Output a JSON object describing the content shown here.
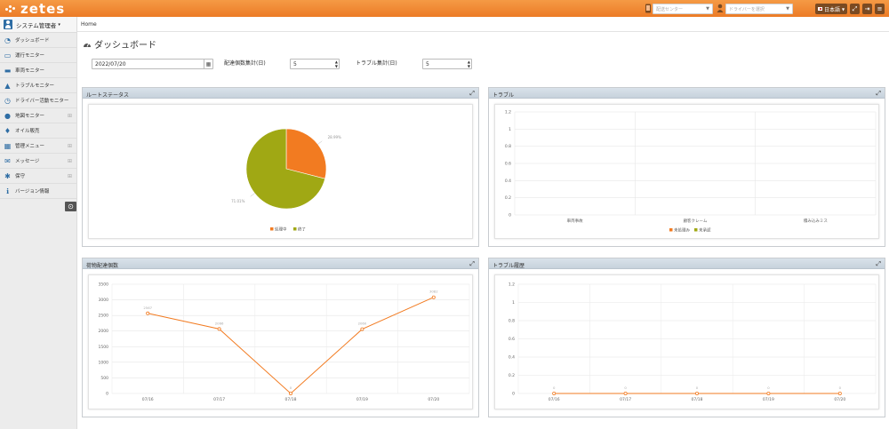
{
  "app": {
    "logo_text": "zetes",
    "topbar": {
      "select1_placeholder": "配送センター",
      "select2_placeholder": "ドライバーを選択",
      "language": "日本語",
      "icons": [
        "mobile-icon",
        "user-icon",
        "fullscreen-icon",
        "logout-icon",
        "menu-icon"
      ]
    }
  },
  "sidebar": {
    "user": "システム管理者",
    "items": [
      {
        "label": "ダッシュボード",
        "icon": "dashboard-icon",
        "expand": false
      },
      {
        "label": "運行モニター",
        "icon": "monitor-icon",
        "expand": false
      },
      {
        "label": "車両モニター",
        "icon": "truck-icon",
        "expand": false
      },
      {
        "label": "トラブルモニター",
        "icon": "warning-icon",
        "expand": false
      },
      {
        "label": "ドライバー活動モニター",
        "icon": "clock-icon",
        "expand": false
      },
      {
        "label": "地図モニター",
        "icon": "map-pin-icon",
        "expand": true
      },
      {
        "label": "オイル販売",
        "icon": "drop-icon",
        "expand": false
      },
      {
        "label": "管理メニュー",
        "icon": "table-icon",
        "expand": true
      },
      {
        "label": "メッセージ",
        "icon": "mail-icon",
        "expand": true
      },
      {
        "label": "保守",
        "icon": "gear-icon",
        "expand": true
      },
      {
        "label": "バージョン情報",
        "icon": "info-icon",
        "expand": false
      }
    ]
  },
  "breadcrumb": "Home",
  "page_title": "ダッシュボード",
  "filters": {
    "date_value": "2022/07/20",
    "delivery_label": "配達個数集計(日)",
    "delivery_value": "5",
    "trouble_label": "トラブル集計(日)",
    "trouble_value": "5"
  },
  "panels": {
    "route_status": "ルートステータス",
    "trouble": "トラブル",
    "delivery_count": "荷物配達個数",
    "trouble_history": "トラブル履歴"
  },
  "chart_data": [
    {
      "type": "pie",
      "panel": "ルートステータス",
      "slices": [
        {
          "name": "処理中",
          "value": 28.99,
          "label": "28.99%",
          "color": "#f27b21"
        },
        {
          "name": "終了",
          "value": 71.01,
          "label": "71.01%",
          "color": "#a0a814"
        }
      ],
      "legend": "bottom"
    },
    {
      "type": "bar",
      "panel": "トラブル",
      "categories": [
        "車両事故",
        "顧客クレーム",
        "積み込みミス"
      ],
      "series": [
        {
          "name": "未処理み",
          "values": [
            0,
            0,
            0
          ],
          "color": "#f27b21"
        },
        {
          "name": "未承認",
          "values": [
            0,
            0,
            0
          ],
          "color": "#a0a814"
        }
      ],
      "yticks": [
        "0",
        "0.2",
        "0.4",
        "0.6",
        "0.8",
        "1",
        "1.2"
      ],
      "ylim": [
        0,
        1.2
      ],
      "legend": "bottom"
    },
    {
      "type": "line",
      "panel": "荷物配達個数",
      "x": [
        "07/16",
        "07/17",
        "07/18",
        "07/19",
        "07/20"
      ],
      "values": [
        2567,
        2066,
        0,
        2060,
        3082
      ],
      "labels": [
        "2567",
        "2066",
        "0",
        "2060",
        "3082"
      ],
      "yticks": [
        "0",
        "500",
        "1000",
        "1500",
        "2000",
        "2500",
        "3000",
        "3500"
      ],
      "ylim": [
        0,
        3500
      ],
      "color": "#f27b21"
    },
    {
      "type": "line",
      "panel": "トラブル履歴",
      "x": [
        "07/16",
        "07/17",
        "07/18",
        "07/19",
        "07/20"
      ],
      "values": [
        0,
        0,
        0,
        0,
        0
      ],
      "labels": [
        "0",
        "0",
        "0",
        "0",
        "0"
      ],
      "yticks": [
        "0",
        "0.2",
        "0.4",
        "0.6",
        "0.8",
        "1",
        "1.2"
      ],
      "ylim": [
        0,
        1.2
      ],
      "color": "#f27b21"
    }
  ]
}
